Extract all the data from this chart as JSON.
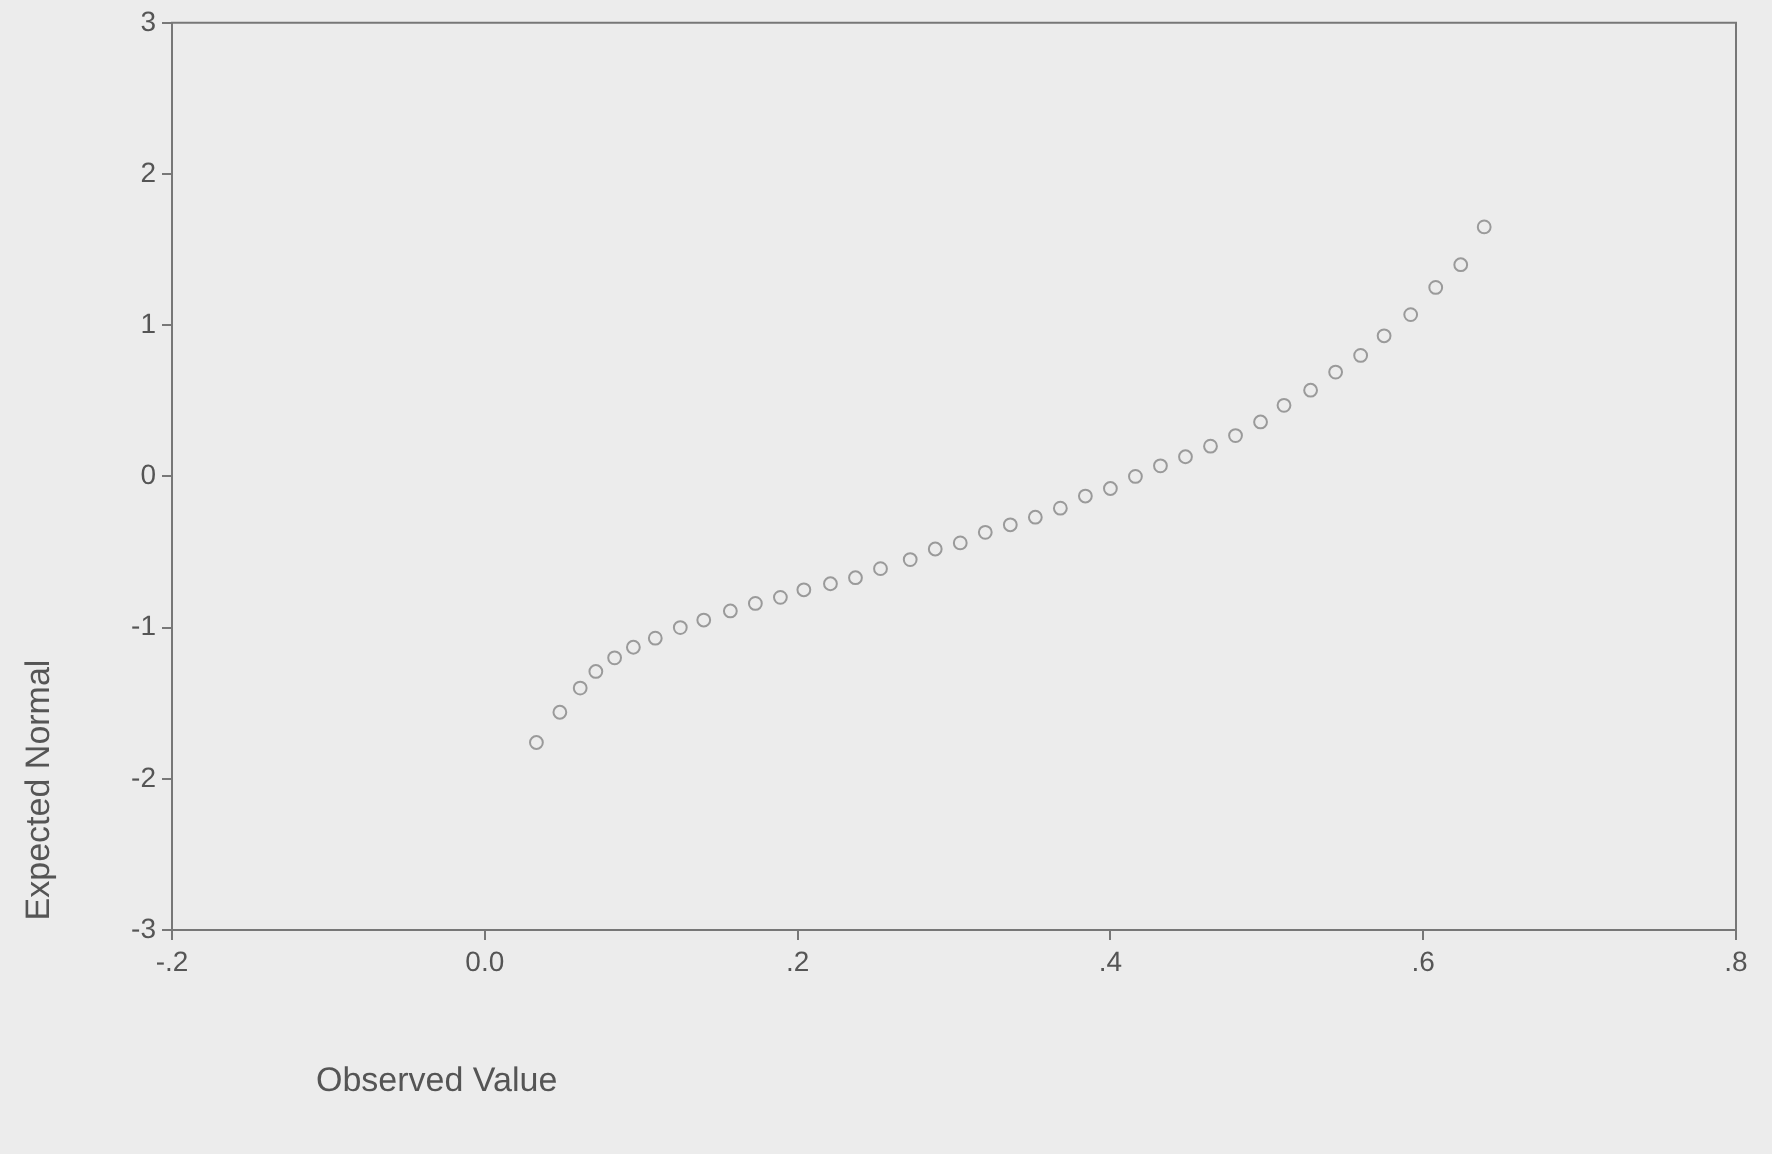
{
  "chart_data": {
    "type": "scatter",
    "xlabel": "Observed Value",
    "ylabel": "Expected Normal",
    "xlim": [
      -0.2,
      0.8
    ],
    "xticks": [
      {
        "value": -0.2,
        "label": "-.2"
      },
      {
        "value": 0,
        "label": "0.0"
      },
      {
        "value": 0.2,
        "label": ".2"
      },
      {
        "value": 0.4,
        "label": ".4"
      },
      {
        "value": 0.6,
        "label": ".6"
      },
      {
        "value": 0.8,
        "label": ".8"
      }
    ],
    "ylim": [
      -3,
      3
    ],
    "yticks": [
      -3,
      -2,
      -1,
      0,
      1,
      2,
      3
    ],
    "grid": false,
    "marker": "circle",
    "series": [
      {
        "color": "#9a9a9a",
        "x": [
          0.033,
          0.048,
          0.061,
          0.071,
          0.083,
          0.095,
          0.109,
          0.125,
          0.14,
          0.157,
          0.173,
          0.189,
          0.204,
          0.221,
          0.237,
          0.253,
          0.272,
          0.288,
          0.304,
          0.32,
          0.336,
          0.352,
          0.368,
          0.384,
          0.4,
          0.416,
          0.432,
          0.448,
          0.464,
          0.48,
          0.496,
          0.511,
          0.528,
          0.544,
          0.56,
          0.575,
          0.592,
          0.608,
          0.624,
          0.639
        ],
        "values": [
          -1.76,
          -1.56,
          -1.4,
          -1.29,
          -1.2,
          -1.13,
          -1.07,
          -1.0,
          -0.95,
          -0.89,
          -0.84,
          -0.8,
          -0.75,
          -0.71,
          -0.67,
          -0.61,
          -0.55,
          -0.48,
          -0.44,
          -0.37,
          -0.32,
          -0.27,
          -0.21,
          -0.13,
          -0.08,
          0.0,
          0.07,
          0.13,
          0.2,
          0.27,
          0.36,
          0.47,
          0.57,
          0.69,
          0.8,
          0.93,
          1.07,
          1.25,
          1.4,
          1.65
        ]
      }
    ]
  }
}
